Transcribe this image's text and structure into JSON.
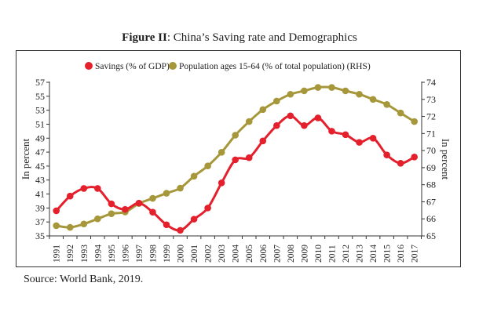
{
  "figure": {
    "title_bold": "Figure II",
    "title_rest": ": China’s Saving rate and Demographics",
    "source": "Source: World Bank, 2019."
  },
  "chart_data": {
    "type": "line",
    "title": "Figure II: China’s Saving rate and Demographics",
    "x": [
      1991,
      1992,
      1993,
      1994,
      1995,
      1996,
      1997,
      1998,
      1999,
      2000,
      2001,
      2002,
      2003,
      2004,
      2005,
      2006,
      2007,
      2008,
      2009,
      2010,
      2011,
      2012,
      2013,
      2014,
      2015,
      2016,
      2017
    ],
    "ylabel": "In percent",
    "y2label": "In percent",
    "ylim": [
      35,
      57
    ],
    "y2lim": [
      65,
      74
    ],
    "yticks": [
      35,
      37,
      39,
      41,
      43,
      45,
      47,
      49,
      51,
      53,
      55,
      57
    ],
    "y2ticks": [
      65,
      66,
      67,
      68,
      69,
      70,
      71,
      72,
      73,
      74
    ],
    "grid": false,
    "legend": "top-center",
    "series": [
      {
        "name": "Savings (% of GDP)",
        "axis": "left",
        "color": "#e3202c",
        "values": [
          38.6,
          40.7,
          41.8,
          41.8,
          39.6,
          38.8,
          39.7,
          38.4,
          36.6,
          35.8,
          37.4,
          39.0,
          42.6,
          45.9,
          46.2,
          48.6,
          50.8,
          52.2,
          50.8,
          51.9,
          50.0,
          49.5,
          48.4,
          49.0,
          46.6,
          45.4,
          46.3
        ]
      },
      {
        "name": "Population ages 15-64 (% of total population) (RHS)",
        "axis": "right",
        "color": "#a6973a",
        "values": [
          65.6,
          65.5,
          65.7,
          66.0,
          66.3,
          66.4,
          66.9,
          67.2,
          67.5,
          67.8,
          68.5,
          69.1,
          69.9,
          70.9,
          71.7,
          72.4,
          72.9,
          73.3,
          73.5,
          73.7,
          73.7,
          73.5,
          73.3,
          73.0,
          72.7,
          72.2,
          71.7
        ]
      }
    ]
  }
}
